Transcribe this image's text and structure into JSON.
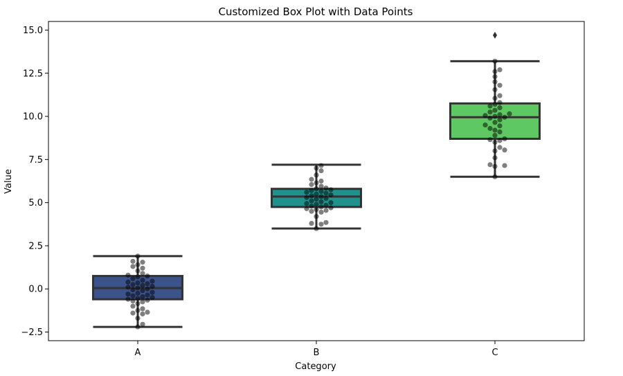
{
  "chart_data": {
    "type": "box",
    "title": "Customized Box Plot with Data Points",
    "xlabel": "Category",
    "ylabel": "Value",
    "ylim": [
      -3.0,
      15.5
    ],
    "yticks": [
      -2.5,
      0.0,
      2.5,
      5.0,
      7.5,
      10.0,
      12.5,
      15.0
    ],
    "ytick_labels": [
      "−2.5",
      "0.0",
      "2.5",
      "5.0",
      "7.5",
      "10.0",
      "12.5",
      "15.0"
    ],
    "grid": false,
    "categories": [
      "A",
      "B",
      "C"
    ],
    "colors": [
      "#3b528b",
      "#21918c",
      "#5ec962"
    ],
    "point_color": "#000000",
    "box_edge_color": "#333333",
    "boxes": [
      {
        "category": "A",
        "whisker_low": -2.2,
        "q1": -0.6,
        "median": 0.05,
        "q3": 0.75,
        "whisker_high": 1.9,
        "outliers": []
      },
      {
        "category": "B",
        "whisker_low": 3.5,
        "q1": 4.75,
        "median": 5.35,
        "q3": 5.8,
        "whisker_high": 7.2,
        "outliers": []
      },
      {
        "category": "C",
        "whisker_low": 6.5,
        "q1": 8.7,
        "median": 9.95,
        "q3": 10.75,
        "whisker_high": 13.2,
        "outliers": [
          14.7
        ]
      }
    ],
    "points": [
      [
        -2.2,
        -2.05,
        -1.7,
        -1.45,
        -1.4,
        -1.35,
        -1.25,
        -1.15,
        -1.0,
        -0.85,
        -0.75,
        -0.7,
        -0.65,
        -0.6,
        -0.55,
        -0.5,
        -0.45,
        -0.4,
        -0.35,
        -0.3,
        -0.25,
        -0.2,
        -0.1,
        -0.05,
        0.0,
        0.05,
        0.1,
        0.15,
        0.2,
        0.25,
        0.3,
        0.35,
        0.4,
        0.45,
        0.5,
        0.6,
        0.7,
        0.75,
        0.8,
        0.9,
        1.05,
        1.2,
        1.3,
        1.4,
        1.55,
        1.6,
        1.9
      ],
      [
        3.5,
        3.75,
        3.8,
        3.85,
        4.2,
        4.45,
        4.5,
        4.55,
        4.6,
        4.65,
        4.7,
        4.75,
        4.8,
        4.85,
        4.9,
        4.95,
        5.0,
        5.05,
        5.1,
        5.2,
        5.25,
        5.3,
        5.35,
        5.4,
        5.45,
        5.5,
        5.55,
        5.6,
        5.65,
        5.7,
        5.75,
        5.8,
        5.85,
        5.95,
        6.05,
        6.15,
        6.25,
        6.35,
        6.6,
        6.85,
        7.0,
        7.15
      ],
      [
        6.5,
        7.1,
        7.15,
        7.2,
        7.6,
        8.0,
        8.05,
        8.2,
        8.5,
        8.6,
        8.65,
        8.7,
        8.9,
        9.1,
        9.2,
        9.3,
        9.45,
        9.5,
        9.65,
        9.8,
        9.9,
        9.95,
        10.0,
        10.05,
        10.1,
        10.15,
        10.25,
        10.35,
        10.5,
        10.6,
        10.7,
        10.8,
        11.05,
        11.2,
        11.55,
        11.8,
        12.0,
        12.3,
        12.6,
        12.7,
        13.2
      ]
    ]
  }
}
